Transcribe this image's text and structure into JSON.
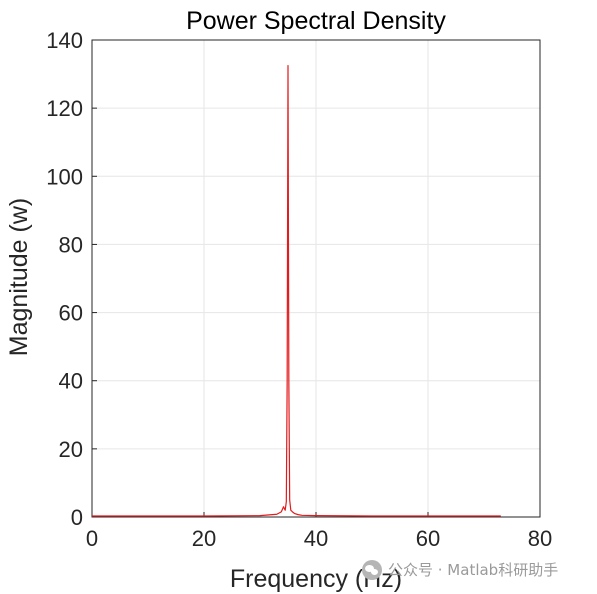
{
  "chart_data": {
    "type": "line",
    "title": "Power Spectral Density",
    "xlabel": "Frequency (Hz)",
    "ylabel": "Magnitude (w)",
    "xlim": [
      0,
      80
    ],
    "ylim": [
      0,
      140
    ],
    "xticks": [
      0,
      20,
      40,
      60,
      80
    ],
    "yticks": [
      0,
      20,
      40,
      60,
      80,
      100,
      120,
      140
    ],
    "grid": true,
    "series": [
      {
        "color": "#e41a1c",
        "x": [
          0,
          10,
          20,
          30,
          33.0,
          33.8,
          34.2,
          34.5,
          34.7,
          34.85,
          35.0,
          35.15,
          35.3,
          35.5,
          35.8,
          36.2,
          36.8,
          37.5,
          40,
          50,
          60,
          73
        ],
        "y": [
          0.3,
          0.3,
          0.3,
          0.4,
          0.8,
          1.5,
          3.0,
          2.0,
          4.5,
          40,
          132.5,
          40,
          5.0,
          2.0,
          1.5,
          1.0,
          0.7,
          0.5,
          0.4,
          0.3,
          0.3,
          0.3
        ]
      }
    ]
  },
  "watermark": {
    "text": "公众号 · Matlab科研助手",
    "icon": "wechat-icon"
  }
}
